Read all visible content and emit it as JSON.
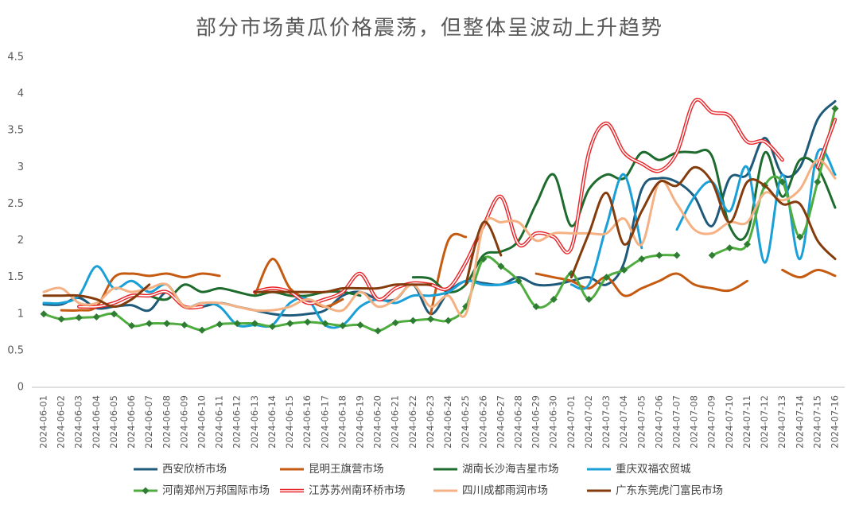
{
  "chart_data": {
    "type": "line",
    "title": "部分市场黄瓜价格震荡，但整体呈波动上升趋势",
    "categories": [
      "2024-06-01",
      "2024-06-02",
      "2024-06-03",
      "2024-06-04",
      "2024-06-05",
      "2024-06-06",
      "2024-06-07",
      "2024-06-08",
      "2024-06-09",
      "2024-06-10",
      "2024-06-11",
      "2024-06-12",
      "2024-06-13",
      "2024-06-14",
      "2024-06-15",
      "2024-06-16",
      "2024-06-17",
      "2024-06-18",
      "2024-06-19",
      "2024-06-20",
      "2024-06-21",
      "2024-06-22",
      "2024-06-23",
      "2024-06-24",
      "2024-06-25",
      "2024-06-26",
      "2024-06-27",
      "2024-06-28",
      "2024-06-29",
      "2024-06-30",
      "2024-07-01",
      "2024-07-02",
      "2024-07-03",
      "2024-07-04",
      "2024-07-05",
      "2024-07-06",
      "2024-07-07",
      "2024-07-08",
      "2024-07-09",
      "2024-07-10",
      "2024-07-11",
      "2024-07-12",
      "2024-07-13",
      "2024-07-14",
      "2024-07-15",
      "2024-07-16"
    ],
    "ylim": [
      0,
      4.5
    ],
    "yticks": [
      0,
      0.5,
      1,
      1.5,
      2,
      2.5,
      3,
      3.5,
      4,
      4.5
    ],
    "grid": false,
    "legend": "bottom",
    "series": [
      {
        "name": "西安欣桥市场",
        "color": "#1f5a7a",
        "values": [
          1.13,
          1.13,
          1.22,
          1.08,
          1.1,
          1.12,
          1.05,
          1.3,
          1.1,
          1.1,
          1.15,
          1.1,
          1.05,
          1.0,
          0.98,
          1.0,
          1.05,
          1.25,
          1.3,
          1.2,
          1.2,
          1.4,
          1.0,
          1.3,
          1.45,
          1.42,
          1.4,
          1.5,
          1.4,
          1.4,
          1.45,
          1.5,
          1.4,
          1.7,
          2.7,
          2.85,
          2.8,
          2.6,
          2.2,
          2.85,
          2.9,
          3.4,
          2.9,
          3.0,
          3.65,
          3.9
        ]
      },
      {
        "name": "昆明王旗营市场",
        "color": "#c55a11",
        "values": [
          null,
          1.05,
          1.05,
          1.1,
          1.5,
          1.55,
          1.52,
          1.55,
          1.5,
          1.55,
          1.52,
          null,
          1.25,
          1.75,
          1.35,
          1.2,
          1.1,
          1.2,
          null,
          null,
          null,
          null,
          1.0,
          2.0,
          2.05,
          null,
          null,
          null,
          1.55,
          1.5,
          1.45,
          1.35,
          1.5,
          1.25,
          1.35,
          1.45,
          1.55,
          1.4,
          1.35,
          1.32,
          1.45,
          null,
          1.6,
          1.5,
          1.6,
          1.52
        ]
      },
      {
        "name": "湖南长沙海吉星市场",
        "color": "#1e6b2e",
        "values": [
          null,
          null,
          null,
          null,
          null,
          null,
          1.25,
          1.2,
          1.4,
          1.3,
          1.35,
          1.3,
          1.25,
          1.3,
          1.25,
          1.25,
          1.3,
          1.3,
          1.25,
          null,
          null,
          1.5,
          1.48,
          1.3,
          1.4,
          1.8,
          1.85,
          2.0,
          2.5,
          2.9,
          2.2,
          2.7,
          2.9,
          2.85,
          3.2,
          3.1,
          3.2,
          3.2,
          3.15,
          2.2,
          2.1,
          3.2,
          2.6,
          3.1,
          3.0,
          2.45
        ]
      },
      {
        "name": "重庆双福农贸城",
        "color": "#1a9fd6",
        "values": [
          1.15,
          1.15,
          1.25,
          1.65,
          1.35,
          1.45,
          1.3,
          1.4,
          1.1,
          1.15,
          1.1,
          0.85,
          0.85,
          0.85,
          1.15,
          1.2,
          0.85,
          0.85,
          1.1,
          1.2,
          1.15,
          1.25,
          1.25,
          1.3,
          1.45,
          1.4,
          1.4,
          1.45,
          null,
          null,
          1.4,
          1.4,
          2.2,
          2.9,
          1.9,
          null,
          2.15,
          2.6,
          2.8,
          2.4,
          3.0,
          1.7,
          2.9,
          1.75,
          3.2,
          2.9
        ]
      },
      {
        "name": "河南郑州万邦国际市场",
        "color": "#4fad3f",
        "marker": "diamond",
        "values": [
          1.0,
          0.93,
          0.95,
          0.96,
          1.0,
          0.84,
          0.87,
          0.87,
          0.85,
          0.78,
          0.86,
          0.87,
          0.87,
          0.83,
          0.87,
          0.89,
          0.87,
          0.84,
          0.85,
          0.77,
          0.88,
          0.91,
          0.93,
          0.91,
          1.1,
          1.75,
          1.65,
          1.45,
          1.1,
          1.2,
          1.55,
          1.2,
          1.5,
          1.6,
          1.75,
          1.8,
          1.8,
          null,
          1.8,
          1.9,
          1.95,
          2.75,
          2.8,
          2.05,
          2.8,
          3.8
        ]
      },
      {
        "name": "江苏苏州南环桥市场",
        "color": "#e8262a",
        "style": "double",
        "values": [
          null,
          null,
          1.1,
          1.1,
          1.15,
          1.25,
          1.25,
          1.3,
          1.1,
          1.1,
          null,
          null,
          1.3,
          1.35,
          1.3,
          1.15,
          1.2,
          1.3,
          1.55,
          1.2,
          1.35,
          1.42,
          1.4,
          1.35,
          1.7,
          2.2,
          2.6,
          1.95,
          2.1,
          2.05,
          1.9,
          3.2,
          3.6,
          3.2,
          3.05,
          2.95,
          3.2,
          3.9,
          3.75,
          3.7,
          3.35,
          3.35,
          3.1,
          null,
          3.0,
          3.65
        ]
      },
      {
        "name": "四川成都雨润市场",
        "color": "#f4b183",
        "values": [
          1.3,
          1.35,
          1.15,
          1.15,
          1.35,
          1.3,
          1.35,
          1.4,
          1.1,
          1.15,
          1.15,
          1.1,
          1.05,
          1.05,
          1.1,
          1.2,
          1.1,
          1.05,
          1.3,
          1.1,
          1.2,
          1.4,
          1.1,
          1.25,
          1.0,
          2.2,
          2.25,
          2.25,
          2.0,
          2.1,
          2.1,
          2.1,
          2.1,
          2.3,
          1.95,
          2.8,
          2.5,
          2.15,
          2.1,
          2.25,
          2.25,
          2.65,
          2.55,
          2.7,
          3.1,
          2.85
        ]
      },
      {
        "name": "广东东莞虎门富民市场",
        "color": "#843c0c",
        "values": [
          1.25,
          1.25,
          1.25,
          1.2,
          1.1,
          1.2,
          1.4,
          null,
          null,
          null,
          null,
          null,
          1.3,
          1.3,
          1.3,
          1.3,
          1.3,
          1.35,
          1.35,
          1.35,
          1.4,
          1.4,
          1.4,
          null,
          1.4,
          2.25,
          1.8,
          null,
          null,
          null,
          1.5,
          2.1,
          2.65,
          1.95,
          2.4,
          2.8,
          2.75,
          3.0,
          2.8,
          2.25,
          2.8,
          2.75,
          2.5,
          2.5,
          2.0,
          1.75
        ]
      }
    ]
  }
}
